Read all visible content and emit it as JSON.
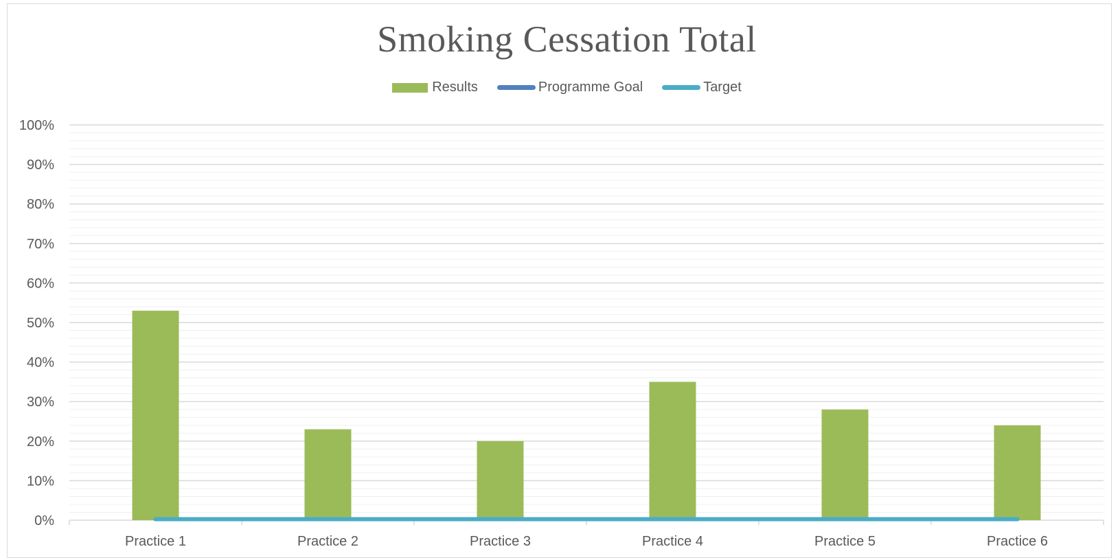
{
  "chart_data": {
    "type": "bar",
    "title": "Smoking Cessation Total",
    "categories": [
      "Practice 1",
      "Practice 2",
      "Practice 3",
      "Practice 4",
      "Practice 5",
      "Practice 6"
    ],
    "series": [
      {
        "name": "Results",
        "type": "bar",
        "color": "#9bbb59",
        "values": [
          53,
          23,
          20,
          35,
          28,
          24
        ]
      },
      {
        "name": "Programme Goal",
        "type": "line",
        "color": "#4f81bd",
        "values": [
          0,
          0,
          0,
          0,
          0,
          0
        ]
      },
      {
        "name": "Target",
        "type": "line",
        "color": "#4bacc6",
        "values": [
          0,
          0,
          0,
          0,
          0,
          0
        ]
      }
    ],
    "ylim": [
      0,
      100
    ],
    "yticks": [
      0,
      10,
      20,
      30,
      40,
      50,
      60,
      70,
      80,
      90,
      100
    ],
    "ytick_labels": [
      "0%",
      "10%",
      "20%",
      "30%",
      "40%",
      "50%",
      "60%",
      "70%",
      "80%",
      "90%",
      "100%"
    ],
    "xlabel": "",
    "ylabel": "",
    "grid": true,
    "minor_grid": true,
    "legend_position": "top-center"
  }
}
